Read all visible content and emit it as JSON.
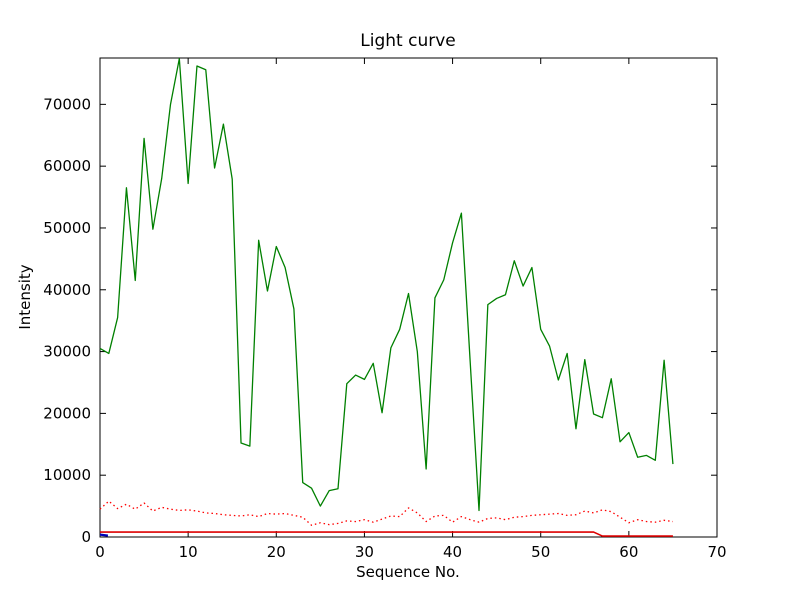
{
  "figure": {
    "kind": "matplotlib-style line plot",
    "background": "#ffffff",
    "frame_color": "#000000"
  },
  "chart_data": {
    "type": "line",
    "title": "Light curve",
    "xlabel": "Sequence No.",
    "ylabel": "Intensity",
    "xlim": [
      0,
      70
    ],
    "ylim": [
      0,
      77500
    ],
    "xticks": [
      0,
      10,
      20,
      30,
      40,
      50,
      60,
      70
    ],
    "yticks": [
      0,
      10000,
      20000,
      30000,
      40000,
      50000,
      60000,
      70000
    ],
    "grid": false,
    "legend": null,
    "series": [
      {
        "name": "main-intensity-curve",
        "color": "#008000",
        "style": "solid",
        "width": 1.3,
        "y": [
          30500,
          29700,
          35500,
          56500,
          41500,
          64500,
          49800,
          58000,
          70000,
          77400,
          57200,
          76200,
          75600,
          59700,
          66800,
          57900,
          15200,
          14700,
          48000,
          39800,
          47000,
          43600,
          36900,
          8800,
          7900,
          5000,
          7500,
          7800,
          24800,
          26200,
          25500,
          28100,
          20100,
          30600,
          33600,
          39400,
          30000,
          11000,
          38700,
          41600,
          47600,
          52400,
          28300,
          4300,
          37600,
          38600,
          39200,
          44700,
          40600,
          43600,
          33600,
          30900,
          25400,
          29700,
          17500,
          28700,
          19900,
          19300,
          25600,
          15400,
          16900,
          12900,
          13200,
          12400,
          28600,
          11800
        ]
      },
      {
        "name": "background-dotted-curve",
        "color": "#ff0000",
        "style": "dotted",
        "width": 1.3,
        "y": [
          4500,
          5800,
          4600,
          5300,
          4500,
          5500,
          4200,
          4800,
          4500,
          4300,
          4400,
          4200,
          3900,
          3800,
          3600,
          3500,
          3400,
          3600,
          3300,
          3800,
          3700,
          3800,
          3500,
          3200,
          1900,
          2300,
          2000,
          2200,
          2600,
          2500,
          2800,
          2400,
          2900,
          3400,
          3300,
          4700,
          3900,
          2500,
          3400,
          3500,
          2400,
          3300,
          2800,
          2400,
          3000,
          3100,
          2800,
          3200,
          3300,
          3500,
          3600,
          3700,
          3800,
          3500,
          3600,
          4200,
          3900,
          4400,
          4100,
          3200,
          2300,
          2800,
          2500,
          2400,
          2700,
          2500
        ]
      },
      {
        "name": "baseline-solid-curve",
        "color": "#dd0000",
        "style": "solid",
        "width": 1.6,
        "y": [
          800,
          800,
          800,
          800,
          800,
          800,
          800,
          800,
          800,
          800,
          800,
          800,
          800,
          800,
          800,
          800,
          800,
          800,
          800,
          800,
          800,
          800,
          800,
          800,
          800,
          800,
          800,
          800,
          800,
          800,
          800,
          800,
          800,
          800,
          800,
          800,
          800,
          800,
          800,
          800,
          800,
          800,
          800,
          800,
          800,
          800,
          800,
          800,
          800,
          800,
          800,
          800,
          800,
          800,
          800,
          800,
          800,
          150,
          150,
          150,
          150,
          150,
          150,
          150,
          150,
          150
        ]
      },
      {
        "name": "blue-start-marker",
        "color": "#0000bb",
        "style": "solid",
        "width": 2.2,
        "x": [
          0,
          0.9
        ],
        "y": [
          380,
          230
        ]
      }
    ]
  }
}
